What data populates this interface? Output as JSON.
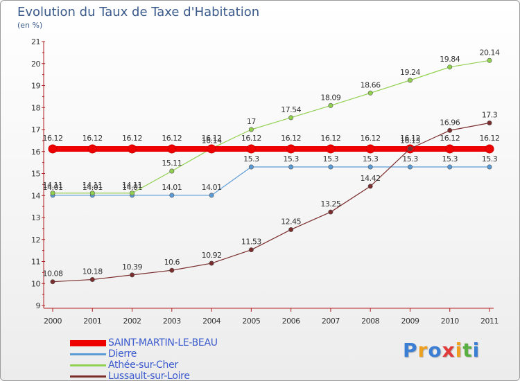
{
  "title": "Evolution du Taux de Taxe d'Habitation",
  "subtitle": "(en %)",
  "logo": {
    "text": "Proxiti",
    "letters": [
      {
        "ch": "P",
        "color": "#3b7fd4"
      },
      {
        "ch": "r",
        "color": "#f0a020"
      },
      {
        "ch": "o",
        "color": "#3b7fd4"
      },
      {
        "ch": "x",
        "color": "#e03a3a"
      },
      {
        "ch": "i",
        "color": "#f0a020"
      },
      {
        "ch": "t",
        "color": "#58b040"
      },
      {
        "ch": "i",
        "color": "#3b7fd4"
      }
    ]
  },
  "chart_data": {
    "type": "line",
    "title": "Evolution du Taux de Taxe d'Habitation",
    "ylabel": "(en %)",
    "xlabel": "",
    "x": [
      "2000",
      "2001",
      "2002",
      "2003",
      "2004",
      "2005",
      "2006",
      "2007",
      "2008",
      "2009",
      "2010",
      "2011"
    ],
    "ylim": [
      9,
      21
    ],
    "yticks": [
      "9",
      "10",
      "11",
      "12",
      "13",
      "14",
      "15",
      "16",
      "17",
      "18",
      "19",
      "20",
      "21"
    ],
    "grid": false,
    "legend_position": "bottom-left",
    "series": [
      {
        "name": "SAINT-MARTIN-LE-BEAU",
        "color": "#ee0000",
        "values": [
          16.12,
          16.12,
          16.12,
          16.12,
          16.12,
          16.12,
          16.12,
          16.12,
          16.12,
          16.12,
          16.12,
          16.12
        ],
        "labels": [
          "16.12",
          "16.12",
          "16.12",
          "16.12",
          "16.12",
          "16.12",
          "16.12",
          "16.12",
          "16.12",
          "16.12",
          "16.12",
          "16.12"
        ]
      },
      {
        "name": "Dierre",
        "color": "#5b9bd5",
        "values": [
          14.01,
          14.01,
          14.01,
          14.01,
          14.01,
          15.3,
          15.3,
          15.3,
          15.3,
          15.3,
          15.3,
          15.3
        ],
        "labels": [
          "14.01",
          "14.01",
          "14.01",
          "14.01",
          "14.01",
          "15.3",
          "15.3",
          "15.3",
          "15.3",
          "15.3",
          "15.3",
          "15.3"
        ]
      },
      {
        "name": "Athée-sur-Cher",
        "color": "#92d050",
        "values": [
          14.11,
          14.11,
          14.11,
          15.11,
          16.14,
          17,
          17.54,
          18.09,
          18.66,
          19.24,
          19.84,
          20.14
        ],
        "labels": [
          "14.11",
          "14.11",
          "14.11",
          "15.11",
          "16.14",
          "17",
          "17.54",
          "18.09",
          "18.66",
          "19.24",
          "19.84",
          "20.14"
        ]
      },
      {
        "name": "Lussault-sur-Loire",
        "color": "#7b2c2c",
        "values": [
          10.08,
          10.18,
          10.39,
          10.6,
          10.92,
          11.53,
          12.45,
          13.25,
          14.42,
          16.13,
          16.96,
          17.3
        ],
        "labels": [
          "10.08",
          "10.18",
          "10.39",
          "10.6",
          "10.92",
          "11.53",
          "12.45",
          "13.25",
          "14.42",
          "16.13",
          "16.96",
          "17.3"
        ]
      }
    ]
  }
}
